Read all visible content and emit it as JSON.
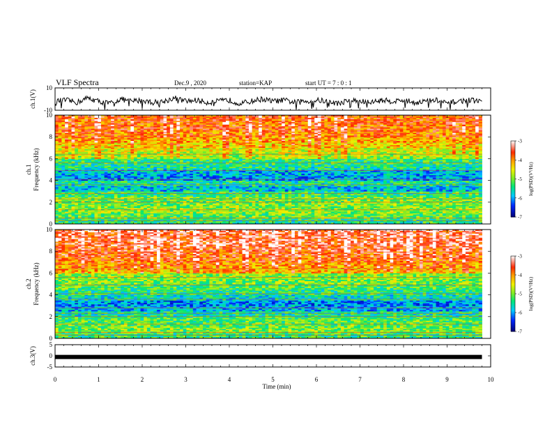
{
  "header": {
    "title": "VLF Spectra",
    "date": "Dec.9 , 2020",
    "station": "station=KAP",
    "start_ut": "start UT = 7 : 0 : 1"
  },
  "chart_data": [
    {
      "type": "line",
      "panel": "ch1-waveform",
      "ylabel": "ch.1(V)",
      "ylim": [
        -10,
        10
      ],
      "yticks": [
        10,
        -10
      ],
      "xlim": [
        0,
        10
      ],
      "data_extent_min": 9.8,
      "x": [
        0.0,
        0.25,
        0.5,
        0.75,
        1.0,
        1.25,
        1.5,
        1.75,
        2.0,
        2.25,
        2.5,
        2.75,
        3.0,
        3.25,
        3.5,
        3.75,
        4.0,
        4.25,
        4.5,
        4.75,
        5.0,
        5.25,
        5.5,
        5.75,
        6.0,
        6.25,
        6.5,
        6.75,
        7.0,
        7.25,
        7.5,
        7.75,
        8.0,
        8.25,
        8.5,
        8.75,
        9.0,
        9.25,
        9.5,
        9.75
      ],
      "y": [
        -2,
        -1,
        -3,
        1,
        -2,
        -4,
        0,
        -2,
        -1,
        -3,
        -2,
        1,
        -2,
        -1,
        -3,
        -2,
        -1,
        -4,
        -2,
        0,
        -2,
        -1,
        -3,
        -2,
        -1,
        -2,
        -4,
        -1,
        -2,
        -3,
        -1,
        -2,
        -1,
        -3,
        -2,
        -1,
        -4,
        -2,
        -1,
        -2
      ],
      "color": "#000000"
    },
    {
      "type": "heatmap",
      "panel": "ch1-spectrogram",
      "ylabel": "ch.1 Frequency (kHz)",
      "ylim": [
        0,
        10
      ],
      "yticks": [
        0,
        2,
        4,
        6,
        8,
        10
      ],
      "xlim": [
        0,
        10
      ],
      "data_extent_min": 9.8,
      "band_edges_khz": [
        0,
        0.5,
        1,
        1.5,
        2,
        2.5,
        3,
        3.5,
        4,
        4.5,
        5,
        5.5,
        6,
        6.5,
        7,
        7.5,
        8,
        8.5,
        9,
        9.5,
        10
      ],
      "band_log_psd": [
        -5.4,
        -5.1,
        -4.9,
        -5.0,
        -5.0,
        -5.3,
        -5.8,
        -5.5,
        -6.0,
        -5.9,
        -5.5,
        -5.3,
        -4.8,
        -4.6,
        -4.3,
        -4.1,
        -3.9,
        -3.8,
        -3.8,
        -3.8
      ],
      "colorbar": {
        "label": "log(PSD)(V²/Hz)",
        "ticks": [
          -3,
          -4,
          -5,
          -6,
          -7
        ],
        "range": [
          -7,
          -3
        ]
      }
    },
    {
      "type": "heatmap",
      "panel": "ch2-spectrogram",
      "ylabel": "ch.2 Frequency (kHz)",
      "ylim": [
        0,
        10
      ],
      "yticks": [
        0,
        2,
        4,
        6,
        8,
        10
      ],
      "xlim": [
        0,
        10
      ],
      "data_extent_min": 9.8,
      "band_edges_khz": [
        0,
        0.5,
        1,
        1.5,
        2,
        2.5,
        3,
        3.5,
        4,
        4.5,
        5,
        5.5,
        6,
        6.5,
        7,
        7.5,
        8,
        8.5,
        9,
        9.5,
        10
      ],
      "band_log_psd": [
        -5.3,
        -5.0,
        -5.1,
        -5.2,
        -5.5,
        -5.9,
        -6.1,
        -5.6,
        -5.4,
        -5.2,
        -5.0,
        -4.9,
        -4.2,
        -4.0,
        -3.8,
        -3.7,
        -3.6,
        -3.5,
        -3.5,
        -3.5
      ],
      "colorbar": {
        "label": "log(PSD)(V²/Hz)",
        "ticks": [
          -3,
          -4,
          -5,
          -6,
          -7
        ],
        "range": [
          -7,
          -3
        ]
      }
    },
    {
      "type": "line",
      "panel": "ch3-waveform",
      "ylabel": "ch.3(V)",
      "ylim": [
        -5,
        5
      ],
      "yticks": [
        5,
        0,
        -5
      ],
      "xlim": [
        0,
        10
      ],
      "data_extent_min": 9.8,
      "x": [
        0,
        9.8
      ],
      "y": [
        -0.5,
        -0.5
      ],
      "color": "#000000"
    }
  ],
  "xaxis": {
    "label": "Time (min)",
    "ticks": [
      0,
      1,
      2,
      3,
      4,
      5,
      6,
      7,
      8,
      9,
      10
    ]
  }
}
